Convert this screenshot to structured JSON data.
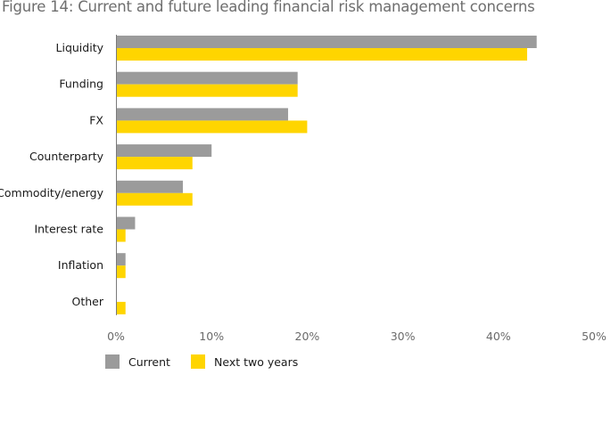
{
  "chart_data": {
    "type": "bar",
    "orientation": "horizontal",
    "title": "Figure 14: Current and future leading financial risk management concerns",
    "categories": [
      "Liquidity",
      "Funding",
      "FX",
      "Counterparty",
      "Commodity/energy",
      "Interest rate",
      "Inflation",
      "Other"
    ],
    "series": [
      {
        "name": "Current",
        "color": "#9b9b9b",
        "values": [
          44,
          19,
          18,
          10,
          7,
          2,
          1,
          0
        ]
      },
      {
        "name": "Next two years",
        "color": "#ffd500",
        "values": [
          43,
          19,
          20,
          8,
          8,
          1,
          1,
          1
        ]
      }
    ],
    "xlim": [
      0,
      50
    ],
    "xticks": [
      "0%",
      "10%",
      "20%",
      "30%",
      "40%",
      "50%"
    ],
    "xtick_values": [
      0,
      10,
      20,
      30,
      40,
      50
    ],
    "grid": false,
    "legend_position": "bottom-left"
  }
}
